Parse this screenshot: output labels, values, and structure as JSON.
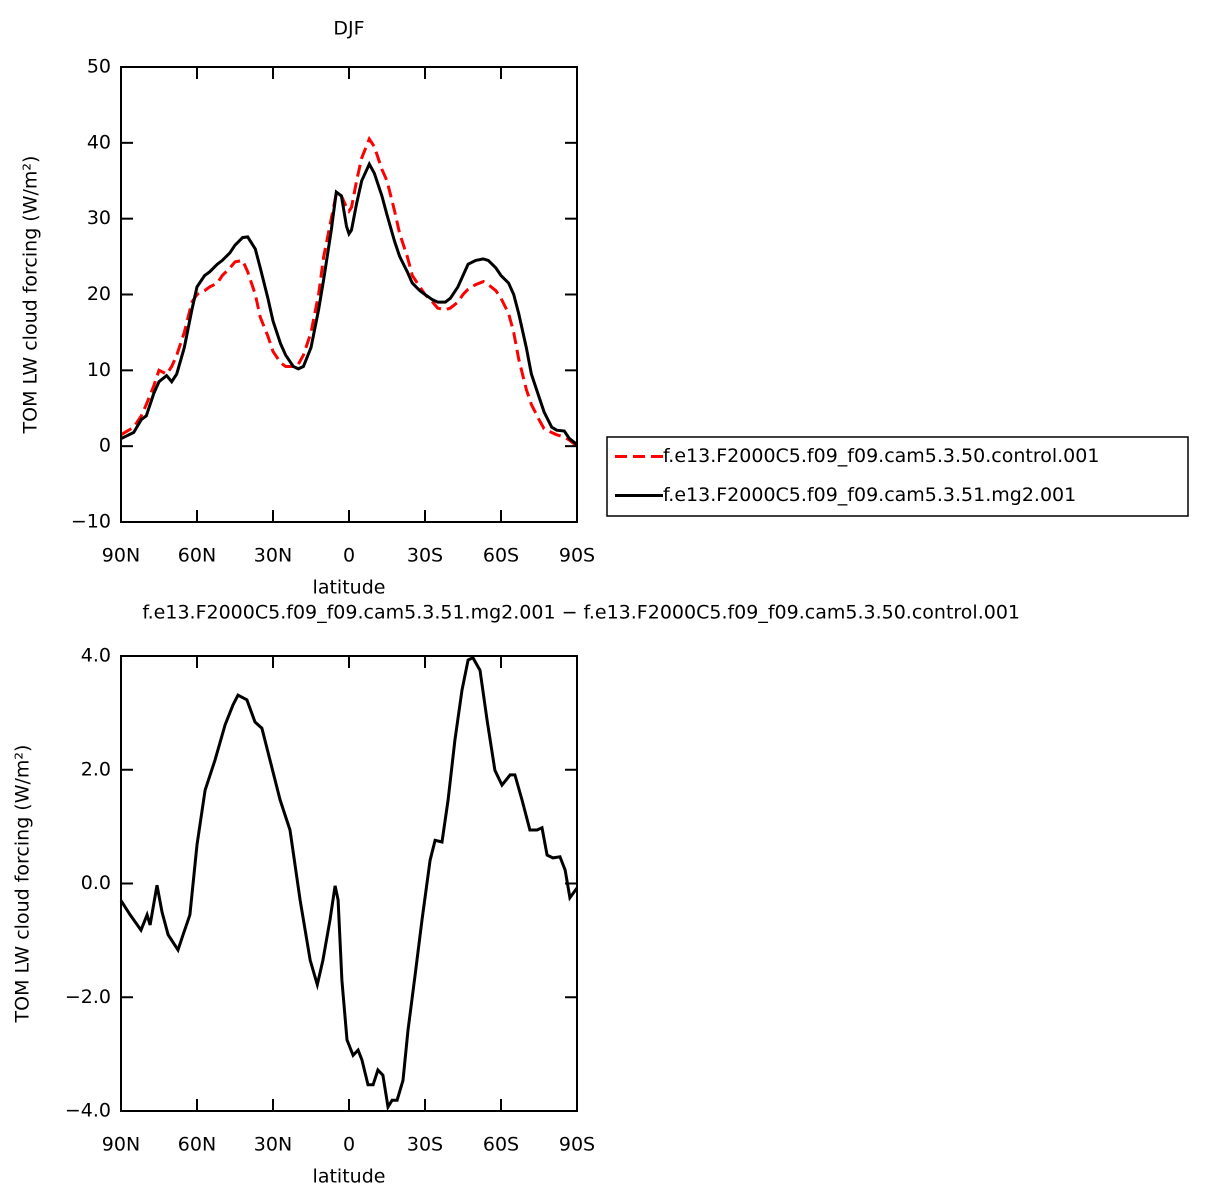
{
  "chart_data": [
    {
      "type": "line",
      "title": "DJF",
      "xlabel": "latitude",
      "ylabel": "TOM LW cloud forcing (W/m²)",
      "xlim": [
        90,
        -90
      ],
      "xticks": [
        {
          "value": 90,
          "label": "90N"
        },
        {
          "value": 60,
          "label": "60N"
        },
        {
          "value": 30,
          "label": "30N"
        },
        0,
        {
          "value": -30,
          "label": "30S"
        },
        {
          "value": -60,
          "label": "60S"
        },
        {
          "value": -90,
          "label": "90S"
        }
      ],
      "ylim": [
        -10,
        50
      ],
      "yticks": [
        {
          "value": -10,
          "label": "−10"
        },
        0,
        10,
        20,
        30,
        40,
        50
      ],
      "legend": "outside right",
      "x": [
        90,
        85,
        82,
        80,
        77,
        75,
        72,
        70,
        68,
        65,
        62,
        60,
        57,
        55,
        52,
        50,
        47,
        45,
        42,
        40,
        37,
        35,
        32,
        30,
        27,
        25,
        22,
        20,
        18,
        15,
        12,
        10,
        7,
        5,
        3,
        1,
        0,
        -1,
        -3,
        -5,
        -8,
        -10,
        -13,
        -15,
        -18,
        -20,
        -23,
        -25,
        -28,
        -30,
        -33,
        -35,
        -38,
        -40,
        -43,
        -45,
        -47,
        -50,
        -53,
        -55,
        -58,
        -60,
        -63,
        -65,
        -67,
        -70,
        -72,
        -75,
        -77,
        -80,
        -82,
        -85,
        -87,
        -90
      ],
      "series": [
        {
          "name": "f.e13.F2000C5.f09_f09.cam5.3.50.control.001",
          "color": "#ff0000",
          "line_style": "dashed",
          "values": [
            1.5,
            2.5,
            4,
            5.5,
            8,
            10,
            9.5,
            10.5,
            12,
            15,
            19,
            20,
            20.5,
            21,
            21.5,
            22.5,
            23.5,
            24.3,
            24.5,
            23,
            20,
            17,
            14.5,
            12.5,
            11,
            10.5,
            10.5,
            10.8,
            12,
            15,
            20,
            25,
            30,
            33.3,
            33,
            31.5,
            31,
            31.5,
            35,
            38,
            40.5,
            39.5,
            36.5,
            35,
            31,
            28,
            25,
            22.5,
            21,
            20,
            19,
            18.2,
            18,
            18.2,
            19,
            20,
            20.7,
            21.3,
            21.7,
            21.3,
            20.5,
            19.5,
            17.5,
            15,
            11.5,
            7.5,
            5.5,
            3.5,
            2.3,
            1.8,
            1.5,
            1.2,
            0.8,
            0
          ]
        },
        {
          "name": "f.e13.F2000C5.f09_f09.cam5.3.51.mg2.001",
          "color": "#000000",
          "line_style": "solid",
          "values": [
            1,
            1.8,
            3.5,
            4,
            7,
            8.5,
            9.3,
            8.5,
            9.5,
            13,
            18,
            21,
            22.5,
            23,
            24,
            24.5,
            25.5,
            26.5,
            27.5,
            27.6,
            26,
            23.5,
            19.5,
            16.5,
            13.5,
            12,
            10.5,
            10.2,
            10.5,
            13,
            18,
            22,
            28.5,
            33.5,
            33,
            29,
            28,
            28.5,
            32,
            35,
            37.2,
            36,
            33,
            30.5,
            27,
            25,
            23,
            21.5,
            20.5,
            20,
            19.3,
            19,
            19,
            19.5,
            21,
            22.5,
            24,
            24.5,
            24.7,
            24.5,
            23.5,
            22.5,
            21.5,
            20,
            17.5,
            13,
            9.5,
            6.5,
            4.5,
            2.5,
            2.1,
            2,
            1,
            0.2
          ]
        }
      ]
    },
    {
      "type": "line",
      "title": "f.e13.F2000C5.f09_f09.cam5.3.51.mg2.001 − f.e13.F2000C5.f09_f09.cam5.3.50.control.001",
      "xlabel": "latitude",
      "ylabel": "TOM LW cloud forcing (W/m²)",
      "xlim": [
        90,
        -90
      ],
      "xticks": [
        {
          "value": 90,
          "label": "90N"
        },
        {
          "value": 60,
          "label": "60N"
        },
        {
          "value": 30,
          "label": "30N"
        },
        0,
        {
          "value": -30,
          "label": "30S"
        },
        {
          "value": -60,
          "label": "60S"
        },
        {
          "value": -90,
          "label": "90S"
        }
      ],
      "ylim": [
        -4,
        4
      ],
      "yticks": [
        {
          "value": -4,
          "label": "−4.0"
        },
        {
          "value": -2,
          "label": "−2.0"
        },
        {
          "value": 0,
          "label": "0.0"
        },
        {
          "value": 2,
          "label": "2.0"
        },
        {
          "value": 4,
          "label": "4.0"
        }
      ],
      "x": [
        90,
        86.4,
        82.1,
        79.7,
        78.5,
        75.8,
        73.8,
        71.4,
        67.5,
        65.5,
        62.8,
        60,
        56.8,
        52.9,
        48.9,
        45.8,
        43.8,
        40.3,
        37.1,
        34.4,
        31.2,
        27.2,
        23.3,
        19.3,
        15.3,
        12.5,
        10.3,
        7.5,
        5.5,
        4.3,
        2.8,
        0.8,
        -1.6,
        -3.6,
        -5.1,
        -7.5,
        -9.5,
        -11.4,
        -13.4,
        -15.4,
        -17,
        -19,
        -21.3,
        -23.3,
        -26.1,
        -28.8,
        -32,
        -34,
        -36.7,
        -39.1,
        -41.8,
        -44.6,
        -47,
        -48.9,
        -51.7,
        -54.5,
        -57.6,
        -60.4,
        -63.6,
        -65.5,
        -68.3,
        -71.4,
        -74.2,
        -76.2,
        -78.2,
        -80.5,
        -83.3,
        -85.3,
        -87.2,
        -90
      ],
      "series": [
        {
          "color": "#000000",
          "line_style": "solid",
          "values": [
            -0.3,
            -0.55,
            -0.82,
            -0.55,
            -0.73,
            -0.03,
            -0.5,
            -0.9,
            -1.17,
            -0.9,
            -0.55,
            0.68,
            1.64,
            2.17,
            2.79,
            3.14,
            3.31,
            3.23,
            2.84,
            2.73,
            2.17,
            1.47,
            0.94,
            -0.29,
            -1.35,
            -1.78,
            -1.35,
            -0.64,
            -0.04,
            -0.29,
            -1.7,
            -2.75,
            -3.02,
            -2.93,
            -3.1,
            -3.54,
            -3.54,
            -3.28,
            -3.37,
            -3.93,
            -3.81,
            -3.81,
            -3.46,
            -2.58,
            -1.61,
            -0.64,
            0.41,
            0.76,
            0.73,
            1.47,
            2.52,
            3.4,
            3.93,
            3.97,
            3.75,
            2.87,
            1.99,
            1.73,
            1.91,
            1.91,
            1.47,
            0.94,
            0.94,
            0.98,
            0.5,
            0.45,
            0.47,
            0.24,
            -0.25,
            -0.08
          ]
        }
      ]
    }
  ]
}
